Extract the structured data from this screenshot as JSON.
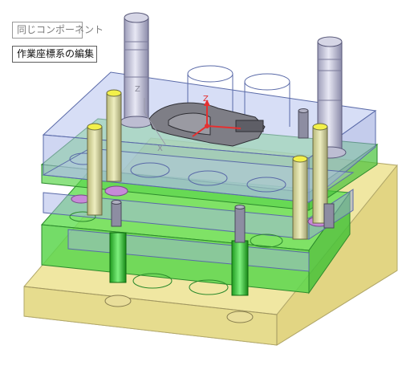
{
  "window": {
    "background": "#ffffff"
  },
  "toolbar": {
    "same_component_label": "同じコンポーネント",
    "edit_coordinate_system_label": "作業座標系の編集"
  },
  "triad": {
    "work_axis_z": "Z",
    "origin_axis_z": "Z",
    "origin_axis_x": "X"
  },
  "colors": {
    "base_plate": "#f0e7a2",
    "plate_blue": "#a9b6e6",
    "plate_green": "#58e04a",
    "pillar": "#c9c9d9",
    "pin_tip": "#f2f04a",
    "axis_red": "#e53030"
  },
  "icons": [
    "mold-assembly-icon",
    "coordinate-triad-icon"
  ]
}
